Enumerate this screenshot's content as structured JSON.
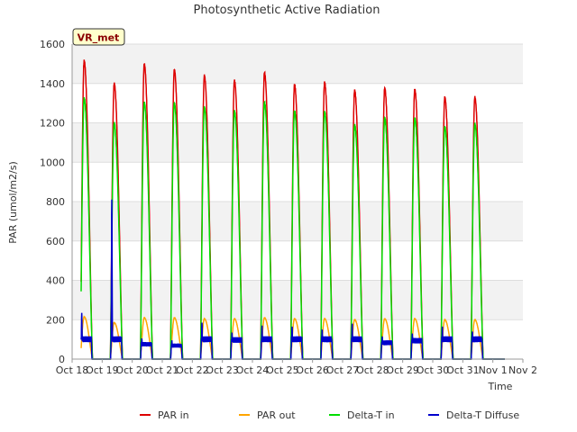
{
  "chart_data": {
    "type": "line",
    "title": "Photosynthetic Active Radiation",
    "xlabel": "Time",
    "ylabel": "PAR (umol/m2/s)",
    "ylim": [
      0,
      1600
    ],
    "xlim": [
      0,
      15
    ],
    "yticks": [
      0,
      200,
      400,
      600,
      800,
      1000,
      1200,
      1400,
      1600
    ],
    "xticks": [
      {
        "x": 0,
        "label": "Oct 18"
      },
      {
        "x": 1,
        "label": "Oct 19"
      },
      {
        "x": 2,
        "label": "Oct 20"
      },
      {
        "x": 3,
        "label": "Oct 21"
      },
      {
        "x": 4,
        "label": "Oct 22"
      },
      {
        "x": 5,
        "label": "Oct 23"
      },
      {
        "x": 6,
        "label": "Oct 24"
      },
      {
        "x": 7,
        "label": "Oct 25"
      },
      {
        "x": 8,
        "label": "Oct 26"
      },
      {
        "x": 9,
        "label": "Oct 27"
      },
      {
        "x": 10,
        "label": "Oct 28"
      },
      {
        "x": 11,
        "label": "Oct 29"
      },
      {
        "x": 12,
        "label": "Oct 30"
      },
      {
        "x": 13,
        "label": "Oct 31"
      },
      {
        "x": 14,
        "label": "Nov 1"
      },
      {
        "x": 15,
        "label": "Nov 2"
      }
    ],
    "site_badge": "VR_met",
    "grid": "horizontal",
    "series_note": "Daily peaks: each day is a bell-shaped diurnal curve centred on solar noon (~0.4 day offset).",
    "series": [
      {
        "name": "PAR in",
        "color": "#dd0000",
        "daily_peaks": [
          1515,
          1400,
          1500,
          1470,
          1440,
          1415,
          1455,
          1395,
          1405,
          1365,
          1375,
          1370,
          1330,
          1330
        ]
      },
      {
        "name": "PAR out",
        "color": "#ffa500",
        "daily_peaks": [
          215,
          185,
          210,
          210,
          205,
          205,
          210,
          205,
          205,
          200,
          205,
          205,
          200,
          200
        ]
      },
      {
        "name": "Delta-T in",
        "color": "#00dd00",
        "daily_peaks": [
          1325,
          1200,
          1305,
          1300,
          1280,
          1260,
          1305,
          1260,
          1255,
          1190,
          1225,
          1225,
          1180,
          1195
        ]
      },
      {
        "name": "Delta-T Diffuse",
        "color": "#0000cc",
        "daily_peaks": [
          235,
          810,
          105,
          95,
          185,
          135,
          170,
          165,
          150,
          180,
          115,
          130,
          165,
          140
        ]
      }
    ],
    "legend": [
      "PAR in",
      "PAR out",
      "Delta-T in",
      "Delta-T Diffuse"
    ],
    "legend_position": "bottom-center"
  }
}
